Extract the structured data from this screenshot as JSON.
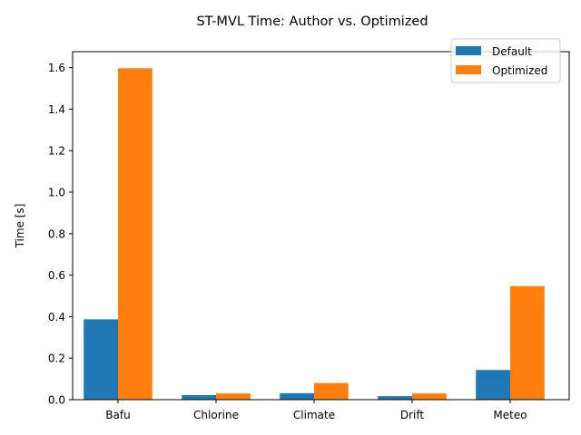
{
  "chart_data": {
    "type": "bar",
    "title": "ST-MVL Time: Author vs. Optimized",
    "xlabel": "",
    "ylabel": "Time [s]",
    "categories": [
      "Bafu",
      "Chlorine",
      "Climate",
      "Drift",
      "Meteo"
    ],
    "series": [
      {
        "name": "Default",
        "color": "#1f77b4",
        "values": [
          0.387,
          0.022,
          0.031,
          0.017,
          0.143
        ]
      },
      {
        "name": "Optimized",
        "color": "#ff7f0e",
        "values": [
          1.597,
          0.03,
          0.08,
          0.03,
          0.547
        ]
      }
    ],
    "ylim": [
      0,
      1.677
    ],
    "yticks": [
      "0.0",
      "0.2",
      "0.4",
      "0.6",
      "0.8",
      "1.0",
      "1.2",
      "1.4",
      "1.6"
    ],
    "legend_position": "top-right",
    "grid": false
  }
}
